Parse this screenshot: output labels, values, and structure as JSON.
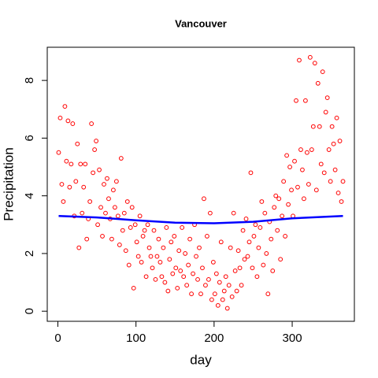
{
  "chart_data": {
    "type": "scatter",
    "title": "Vancouver",
    "x_label": "day",
    "y_label": "Precipitation",
    "xlim": [
      -13.6,
      379.6
    ],
    "ylim": [
      -0.35,
      9.15
    ],
    "xticks": [
      0,
      100,
      200,
      300
    ],
    "yticks": [
      0,
      2,
      4,
      6,
      8
    ],
    "series": [
      {
        "color": "#ff0000",
        "x": [
          1,
          3,
          5,
          7,
          9,
          11,
          13,
          15,
          17,
          19,
          21,
          23,
          25,
          27,
          29,
          31,
          33,
          35,
          37,
          39,
          41,
          43,
          45,
          47,
          49,
          51,
          53,
          55,
          57,
          59,
          61,
          63,
          65,
          67,
          69,
          71,
          73,
          75,
          77,
          79,
          81,
          83,
          85,
          87,
          89,
          91,
          93,
          95,
          97,
          99,
          101,
          103,
          105,
          107,
          109,
          111,
          113,
          115,
          117,
          119,
          121,
          123,
          125,
          127,
          129,
          131,
          133,
          135,
          137,
          139,
          141,
          143,
          145,
          147,
          149,
          151,
          153,
          155,
          157,
          159,
          161,
          163,
          165,
          167,
          169,
          171,
          173,
          175,
          177,
          179,
          181,
          183,
          185,
          187,
          189,
          191,
          193,
          195,
          197,
          199,
          201,
          203,
          205,
          207,
          209,
          211,
          213,
          215,
          217,
          219,
          221,
          223,
          225,
          227,
          229,
          231,
          233,
          235,
          237,
          239,
          241,
          243,
          245,
          247,
          249,
          251,
          253,
          255,
          257,
          259,
          261,
          263,
          265,
          267,
          269,
          271,
          273,
          275,
          277,
          279,
          281,
          283,
          285,
          287,
          289,
          291,
          293,
          295,
          297,
          299,
          301,
          303,
          305,
          307,
          309,
          311,
          313,
          315,
          317,
          319,
          321,
          323,
          325,
          327,
          329,
          331,
          333,
          335,
          337,
          339,
          341,
          343,
          345,
          347,
          349,
          351,
          353,
          355,
          357,
          359,
          361,
          363,
          365
        ],
        "values": [
          5.5,
          6.7,
          4.4,
          3.8,
          7.1,
          5.2,
          6.6,
          4.3,
          5.1,
          6.5,
          3.3,
          4.5,
          5.8,
          2.2,
          5.1,
          3.4,
          4.3,
          5.1,
          2.5,
          3.2,
          3.8,
          6.5,
          4.8,
          5.6,
          5.9,
          3.0,
          4.9,
          3.6,
          2.6,
          4.4,
          3.4,
          4.6,
          3.9,
          3.2,
          2.5,
          4.2,
          3.6,
          4.5,
          3.3,
          2.3,
          5.3,
          2.8,
          3.4,
          2.1,
          3.8,
          1.6,
          2.9,
          3.6,
          0.8,
          3.0,
          2.4,
          1.9,
          3.3,
          1.7,
          2.6,
          2.8,
          1.2,
          3.0,
          2.2,
          1.9,
          1.5,
          2.8,
          1.1,
          1.9,
          2.5,
          1.7,
          1.2,
          2.2,
          1.0,
          2.9,
          0.7,
          1.8,
          2.4,
          1.3,
          2.6,
          1.5,
          0.8,
          2.1,
          1.4,
          2.9,
          1.2,
          2.0,
          0.9,
          1.6,
          2.5,
          0.6,
          1.3,
          3.0,
          1.9,
          1.1,
          2.2,
          0.6,
          1.5,
          3.9,
          0.9,
          2.6,
          1.1,
          3.4,
          0.4,
          1.7,
          0.6,
          1.3,
          0.2,
          1.0,
          2.4,
          0.4,
          0.7,
          1.2,
          0.1,
          0.9,
          2.2,
          0.5,
          3.4,
          1.4,
          0.7,
          2.1,
          1.5,
          0.9,
          2.8,
          1.8,
          3.2,
          1.9,
          2.4,
          4.8,
          1.5,
          2.6,
          3.0,
          1.2,
          2.2,
          2.9,
          3.8,
          1.6,
          3.4,
          2.0,
          0.6,
          3.1,
          2.5,
          1.4,
          3.6,
          4.0,
          2.8,
          3.9,
          1.8,
          3.3,
          4.5,
          2.6,
          5.4,
          3.7,
          5.0,
          4.2,
          3.3,
          5.2,
          7.3,
          4.3,
          8.7,
          5.6,
          4.9,
          3.9,
          7.3,
          5.5,
          4.4,
          8.8,
          5.6,
          6.4,
          8.6,
          4.2,
          7.9,
          6.4,
          5.1,
          8.3,
          4.8,
          6.9,
          7.4,
          5.6,
          4.5,
          6.4,
          5.8,
          4.9,
          6.7,
          4.1,
          5.9,
          3.8,
          4.5
        ]
      },
      {
        "type": "line",
        "color": "#0000ff",
        "x": [
          1,
          50,
          100,
          150,
          200,
          250,
          300,
          365
        ],
        "values": [
          3.3,
          3.25,
          3.15,
          3.07,
          3.05,
          3.1,
          3.22,
          3.3
        ]
      }
    ]
  }
}
